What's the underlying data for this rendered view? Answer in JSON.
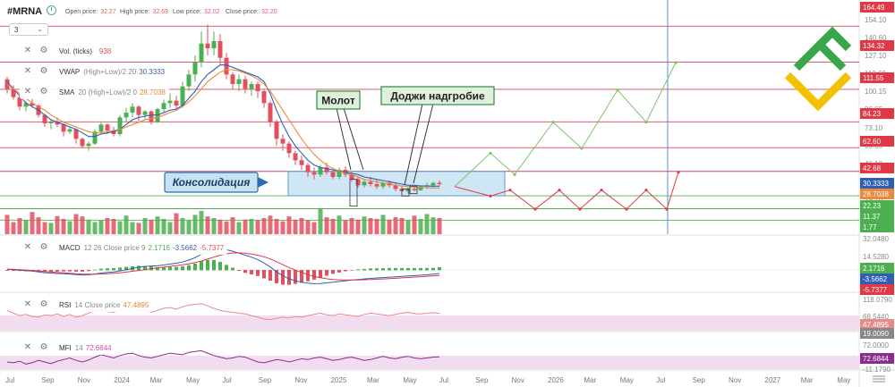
{
  "header": {
    "symbol": "#MRNA",
    "timeframe": "3",
    "open_label": "Open price:",
    "open": "32.27",
    "high_label": "High price:",
    "high": "32.69",
    "low_label": "Low price:",
    "low": "32.02",
    "close_label": "Close price:",
    "close": "32.20"
  },
  "indicators": {
    "vol": {
      "name": "Vol. (ticks)",
      "params": "",
      "value": "938"
    },
    "vwap": {
      "name": "VWAP",
      "params": "(High+Low)/2 20",
      "value": "30.3333"
    },
    "sma": {
      "name": "SMA",
      "params": "20 (High+Low)/2 0",
      "value": "28.7038"
    },
    "macd": {
      "name": "MACD",
      "params": "12 26 Close price 9",
      "v1": "2.1716",
      "v2": "-3.5662",
      "v3": "-5.7377"
    },
    "rsi": {
      "name": "RSI",
      "params": "14 Close price",
      "value": "47.4895"
    },
    "mfi": {
      "name": "MFI",
      "params": "14",
      "value": "72.6844"
    }
  },
  "annotations": {
    "molot": "Молот",
    "doji": "Доджи надгробие",
    "consolidation": "Консолидация"
  },
  "colors": {
    "up": "#4caf50",
    "down": "#e25060",
    "level": "#d64556",
    "support": "#4caf50",
    "zone": "#a8d2ec",
    "vwap": "#2f5fb5",
    "sma": "#e98a3c",
    "forecast_up": "#7cc26b",
    "forecast_down": "#e03845",
    "rsi": "#e88a8a",
    "mfi": "#8a2d8f",
    "cursor": "#5b8fd9",
    "logo_green": "#3aa64a",
    "logo_yellow": "#f2c200"
  },
  "price_axis": {
    "ticks": [
      "154.10",
      "140.60",
      "127.10",
      "113.60",
      "100.15",
      "86.65",
      "73.10",
      "59.65",
      "46.10",
      "32.60",
      "19.10",
      "5.65"
    ],
    "levels": [
      {
        "label": "164.49",
        "color": "#e03845"
      },
      {
        "label": "134.32",
        "color": "#e03845"
      },
      {
        "label": "111.55",
        "color": "#e03845"
      },
      {
        "label": "84.23",
        "color": "#e03845"
      },
      {
        "label": "62.60",
        "color": "#e03845"
      },
      {
        "label": "42.68",
        "color": "#e03845"
      },
      {
        "label": "30.3333",
        "color": "#2f5fb5"
      },
      {
        "label": "28.7038",
        "color": "#e98a3c"
      },
      {
        "label": "22.23",
        "color": "#4caf50"
      },
      {
        "label": "11.37",
        "color": "#4caf50"
      },
      {
        "label": "1.77",
        "color": "#4caf50"
      }
    ]
  },
  "macd_axis": {
    "ticks": [
      "32.0480",
      "14.5280",
      "-2.9770"
    ],
    "labels": [
      {
        "text": "2.1716",
        "color": "#4caf50"
      },
      {
        "text": "-3.5662",
        "color": "#2f5fb5"
      },
      {
        "text": "-5.7377",
        "color": "#e03845"
      }
    ]
  },
  "rsi_axis": {
    "ticks": [
      "118.0790",
      "68.5440",
      "-81.3940"
    ],
    "labels": [
      {
        "text": "47.4895",
        "color": "#e98a8a"
      },
      {
        "text": "19.0090",
        "color": "#888888"
      }
    ]
  },
  "mfi_axis": {
    "ticks": [
      "72.0000",
      "-11.1790"
    ],
    "labels": [
      {
        "text": "72.6844",
        "color": "#8a2d8f"
      }
    ]
  },
  "time_axis": {
    "labels": [
      "Jul",
      "Sep",
      "Nov",
      "2024",
      "Mar",
      "May",
      "Jul",
      "Sep",
      "Nov",
      "2025",
      "Mar",
      "May",
      "Jul",
      "Sep",
      "Nov",
      "2026",
      "Mar",
      "May",
      "Jul",
      "Sep",
      "Nov",
      "2027",
      "Mar",
      "May"
    ]
  },
  "chart_data": {
    "type": "candlestick",
    "title": "#MRNA",
    "x_unit": "weekly bars (approx. Jul 2023 – Jul 2025)",
    "bars": [
      [
        120,
        122,
        108,
        112
      ],
      [
        112,
        115,
        103,
        105
      ],
      [
        105,
        106,
        94,
        97
      ],
      [
        97,
        102,
        93,
        100
      ],
      [
        100,
        104,
        96,
        98
      ],
      [
        98,
        99,
        88,
        90
      ],
      [
        90,
        91,
        80,
        83
      ],
      [
        83,
        86,
        78,
        84
      ],
      [
        84,
        88,
        80,
        82
      ],
      [
        82,
        83,
        72,
        76
      ],
      [
        76,
        80,
        74,
        78
      ],
      [
        78,
        79,
        66,
        70
      ],
      [
        70,
        71,
        62,
        64
      ],
      [
        64,
        68,
        60,
        66
      ],
      [
        66,
        78,
        65,
        76
      ],
      [
        76,
        84,
        74,
        82
      ],
      [
        82,
        83,
        74,
        77
      ],
      [
        77,
        80,
        72,
        74
      ],
      [
        74,
        90,
        72,
        88
      ],
      [
        88,
        96,
        84,
        92
      ],
      [
        92,
        100,
        88,
        97
      ],
      [
        97,
        98,
        85,
        90
      ],
      [
        90,
        94,
        86,
        93
      ],
      [
        93,
        94,
        82,
        84
      ],
      [
        84,
        96,
        83,
        95
      ],
      [
        95,
        103,
        92,
        100
      ],
      [
        100,
        108,
        96,
        102
      ],
      [
        102,
        106,
        94,
        98
      ],
      [
        98,
        118,
        96,
        114
      ],
      [
        114,
        128,
        110,
        124
      ],
      [
        124,
        140,
        118,
        134
      ],
      [
        134,
        160,
        130,
        150
      ],
      [
        150,
        166,
        140,
        146
      ],
      [
        146,
        160,
        140,
        152
      ],
      [
        152,
        158,
        132,
        138
      ],
      [
        138,
        142,
        120,
        124
      ],
      [
        124,
        126,
        112,
        116
      ],
      [
        116,
        124,
        110,
        120
      ],
      [
        120,
        123,
        108,
        112
      ],
      [
        112,
        118,
        106,
        116
      ],
      [
        116,
        118,
        104,
        110
      ],
      [
        110,
        112,
        96,
        100
      ],
      [
        100,
        102,
        80,
        84
      ],
      [
        84,
        86,
        64,
        70
      ],
      [
        70,
        74,
        60,
        66
      ],
      [
        66,
        68,
        54,
        58
      ],
      [
        58,
        60,
        48,
        52
      ],
      [
        52,
        56,
        44,
        48
      ],
      [
        48,
        50,
        38,
        42
      ],
      [
        42,
        46,
        36,
        40
      ],
      [
        40,
        48,
        38,
        46
      ],
      [
        46,
        50,
        40,
        42
      ],
      [
        42,
        44,
        36,
        38
      ],
      [
        38,
        46,
        36,
        44
      ],
      [
        44,
        47,
        38,
        40
      ],
      [
        40,
        42,
        34,
        36
      ],
      [
        36,
        38,
        29,
        31
      ],
      [
        31,
        36,
        29,
        34
      ],
      [
        34,
        38,
        30,
        32
      ],
      [
        32,
        36,
        28,
        30
      ],
      [
        30,
        34,
        28,
        33
      ],
      [
        33,
        35,
        29,
        31
      ],
      [
        31,
        33,
        26,
        28
      ],
      [
        28,
        30,
        24,
        26
      ],
      [
        26,
        29,
        24,
        28
      ],
      [
        28,
        30,
        26,
        27
      ],
      [
        27,
        31,
        26,
        30
      ],
      [
        30,
        33,
        28,
        31
      ],
      [
        31,
        34,
        29,
        33
      ],
      [
        33,
        35,
        30,
        32
      ]
    ],
    "volumes": [
      48,
      30,
      40,
      35,
      55,
      42,
      30,
      28,
      45,
      38,
      32,
      50,
      44,
      36,
      30,
      34,
      40,
      38,
      32,
      46,
      30,
      28,
      40,
      36,
      44,
      38,
      30,
      52,
      40,
      34,
      48,
      58,
      44,
      40,
      36,
      32,
      42,
      30,
      36,
      38,
      34,
      40,
      46,
      38,
      32,
      44,
      36,
      40,
      34,
      30,
      64,
      42,
      38,
      46,
      34,
      40,
      36,
      44,
      40,
      38,
      48,
      36,
      42,
      40,
      34,
      46,
      38,
      50,
      42,
      40
    ],
    "vwap": [
      118,
      112,
      106,
      100,
      97,
      94,
      90,
      86,
      84,
      82,
      80,
      78,
      75,
      72,
      72,
      74,
      75,
      76,
      78,
      82,
      86,
      88,
      89,
      90,
      90,
      92,
      94,
      95,
      98,
      104,
      110,
      118,
      124,
      128,
      132,
      132,
      130,
      128,
      126,
      124,
      122,
      118,
      108,
      94,
      82,
      72,
      64,
      58,
      52,
      48,
      46,
      45,
      44,
      43,
      42,
      41,
      40,
      38,
      37,
      36,
      35,
      34,
      33,
      32,
      31,
      31,
      30.5,
      30.4,
      30.3,
      30.3
    ],
    "sma": [
      115,
      112,
      108,
      104,
      100,
      97,
      94,
      90,
      87,
      84,
      82,
      80,
      78,
      76,
      75,
      75,
      76,
      77,
      78,
      80,
      82,
      84,
      86,
      87,
      88,
      90,
      92,
      94,
      97,
      101,
      106,
      112,
      118,
      122,
      126,
      128,
      128,
      127,
      125,
      123,
      120,
      116,
      110,
      102,
      94,
      86,
      78,
      70,
      63,
      57,
      52,
      48,
      45,
      43,
      41,
      40,
      38,
      36,
      35,
      34,
      33,
      32,
      31,
      30.5,
      30,
      29.5,
      29.2,
      29,
      28.8,
      28.7
    ],
    "forecast_up": [
      [
        508,
        30
      ],
      [
        548,
        58
      ],
      [
        575,
        40
      ],
      [
        618,
        84
      ],
      [
        650,
        62
      ],
      [
        690,
        111
      ],
      [
        722,
        84
      ],
      [
        755,
        134
      ]
    ],
    "forecast_down": [
      [
        508,
        30
      ],
      [
        548,
        22
      ],
      [
        570,
        27
      ],
      [
        598,
        11
      ],
      [
        625,
        27
      ],
      [
        648,
        11
      ],
      [
        672,
        27
      ],
      [
        700,
        11
      ],
      [
        722,
        27
      ],
      [
        745,
        11
      ],
      [
        758,
        42
      ]
    ],
    "consolidation_zone": {
      "y_range": [
        22.23,
        42.68
      ]
    },
    "levels": [
      164.49,
      134.32,
      111.55,
      84.23,
      62.6,
      42.68,
      22.23,
      11.37,
      1.77
    ],
    "macd": {
      "line": [
        0.5,
        0.2,
        -0.2,
        -0.8,
        -1.2,
        -2.0,
        -2.8,
        -3.2,
        -3.6,
        -3.8,
        -4.2,
        -4.8,
        -5.2,
        -5.0,
        -4.2,
        -3.2,
        -2.5,
        -2.0,
        -1.0,
        0.2,
        1.5,
        2.8,
        3.5,
        4.0,
        4.2,
        5.0,
        6.0,
        6.8,
        8.0,
        10.0,
        12.5,
        16.0,
        19.0,
        21.0,
        21.5,
        20.5,
        19.0,
        17.0,
        15.0,
        13.0,
        10.5,
        7.0,
        3.0,
        -2.0,
        -6.0,
        -9.0,
        -11.0,
        -12.5,
        -13.5,
        -14.0,
        -13.8,
        -13.2,
        -12.5,
        -11.8,
        -11.0,
        -10.4,
        -9.8,
        -9.2,
        -8.6,
        -8.2,
        -7.8,
        -7.4,
        -7.0,
        -6.6,
        -6.2,
        -5.8,
        -5.4,
        -5.0,
        -4.4,
        -3.6
      ],
      "signal": [
        0.8,
        0.6,
        0.3,
        -0.1,
        -0.5,
        -1.0,
        -1.6,
        -2.1,
        -2.6,
        -3.0,
        -3.4,
        -3.8,
        -4.2,
        -4.4,
        -4.4,
        -4.2,
        -3.8,
        -3.4,
        -2.9,
        -2.2,
        -1.4,
        -0.5,
        0.4,
        1.2,
        2.0,
        2.8,
        3.6,
        4.4,
        5.2,
        6.2,
        7.5,
        9.0,
        11.0,
        13.0,
        15.0,
        16.5,
        17.2,
        17.4,
        17.0,
        16.2,
        15.0,
        13.4,
        11.2,
        8.4,
        5.4,
        2.5,
        -0.2,
        -2.6,
        -4.8,
        -6.6,
        -8.0,
        -9.0,
        -9.7,
        -10.1,
        -10.3,
        -10.3,
        -10.2,
        -10.0,
        -9.8,
        -9.5,
        -9.2,
        -8.9,
        -8.5,
        -8.1,
        -7.7,
        -7.3,
        -6.9,
        -6.5,
        -6.0,
        -5.7
      ]
    },
    "rsi": [
      55,
      48,
      42,
      45,
      40,
      38,
      44,
      42,
      46,
      40,
      45,
      38,
      42,
      48,
      55,
      58,
      52,
      50,
      56,
      60,
      62,
      55,
      58,
      50,
      55,
      60,
      62,
      58,
      64,
      68,
      70,
      72,
      66,
      60,
      55,
      52,
      50,
      48,
      46,
      42,
      38,
      34,
      32,
      35,
      38,
      36,
      40,
      38,
      42,
      45,
      48,
      44,
      42,
      46,
      44,
      42,
      40,
      45,
      48,
      46,
      44,
      42,
      45,
      48,
      50,
      47,
      46,
      48,
      49,
      47.5
    ],
    "mfi": [
      60,
      58,
      62,
      55,
      58,
      64,
      60,
      56,
      62,
      66,
      70,
      64,
      60,
      65,
      72,
      78,
      74,
      70,
      76,
      80,
      82,
      76,
      72,
      70,
      74,
      78,
      82,
      80,
      78,
      84,
      86,
      88,
      82,
      76,
      72,
      68,
      70,
      74,
      72,
      66,
      60,
      58,
      62,
      66,
      64,
      60,
      64,
      68,
      66,
      70,
      72,
      68,
      64,
      66,
      70,
      72,
      68,
      64,
      66,
      70,
      74,
      70,
      68,
      72,
      74,
      70,
      68,
      70,
      72,
      72.7
    ]
  }
}
